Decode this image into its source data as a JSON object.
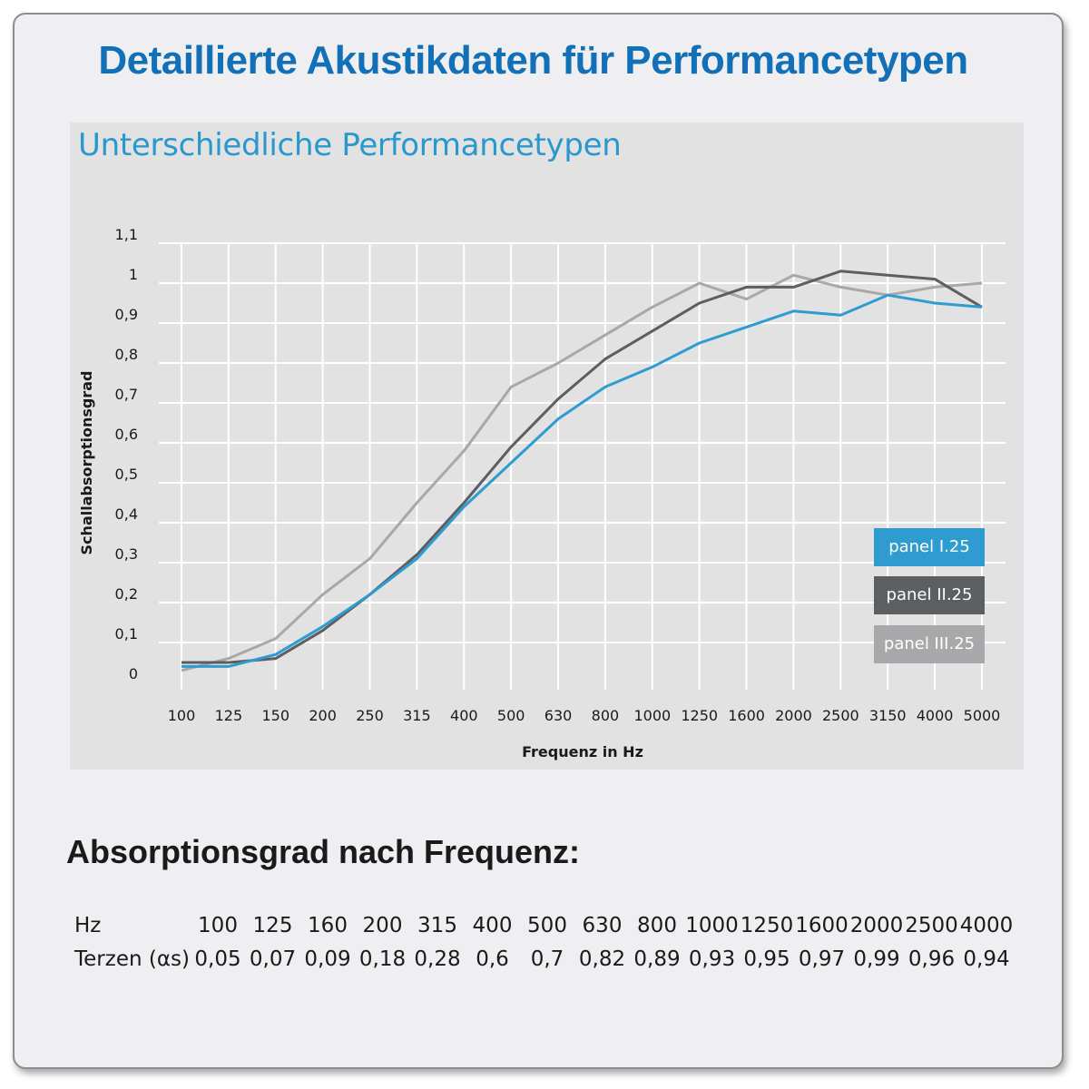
{
  "title": "Detaillierte Akustikdaten für Performancetypen",
  "chart_data": {
    "type": "line",
    "title": "Unterschiedliche Performancetypen",
    "xlabel": "Frequenz in Hz",
    "ylabel": "Schallabsorptionsgrad",
    "categories": [
      "100",
      "125",
      "150",
      "200",
      "250",
      "315",
      "400",
      "500",
      "630",
      "800",
      "1000",
      "1250",
      "1600",
      "2000",
      "2500",
      "3150",
      "4000",
      "5000"
    ],
    "y_ticks": [
      "0",
      "0,1",
      "0,2",
      "0,3",
      "0,4",
      "0,5",
      "0,6",
      "0,7",
      "0,8",
      "0,9",
      "1",
      "1,1"
    ],
    "ylim": [
      0,
      1.1
    ],
    "grid": true,
    "legend_position": "bottom-right",
    "series": [
      {
        "name": "panel I.25",
        "color": "#2e9cd1",
        "values": [
          0.04,
          0.04,
          0.07,
          0.14,
          0.22,
          0.31,
          0.44,
          0.55,
          0.66,
          0.74,
          0.79,
          0.85,
          0.89,
          0.93,
          0.92,
          0.97,
          0.95,
          0.94
        ]
      },
      {
        "name": "panel II.25",
        "color": "#5d5e60",
        "values": [
          0.05,
          0.05,
          0.06,
          0.13,
          0.22,
          0.32,
          0.45,
          0.59,
          0.71,
          0.81,
          0.88,
          0.95,
          0.99,
          0.99,
          1.03,
          1.02,
          1.01,
          0.94
        ]
      },
      {
        "name": "panel III.25",
        "color": "#a8a8aa",
        "values": [
          0.03,
          0.06,
          0.11,
          0.22,
          0.31,
          0.45,
          0.58,
          0.74,
          0.8,
          0.87,
          0.94,
          1.0,
          0.96,
          1.02,
          0.99,
          0.97,
          0.99,
          1.0
        ]
      }
    ]
  },
  "table": {
    "title": "Absorptionsgrad nach Frequenz:",
    "rows": [
      {
        "label": "Hz",
        "values": [
          "100",
          "125",
          "160",
          "200",
          "315",
          "400",
          "500",
          "630",
          "800",
          "1000",
          "1250",
          "1600",
          "2000",
          "2500",
          "4000"
        ]
      },
      {
        "label": "Terzen (αs)",
        "values": [
          "0,05",
          "0,07",
          "0,09",
          "0,18",
          "0,28",
          "0,6",
          "0,7",
          "0,82",
          "0,89",
          "0,93",
          "0,95",
          "0,97",
          "0,99",
          "0,96",
          "0,94"
        ]
      }
    ]
  }
}
